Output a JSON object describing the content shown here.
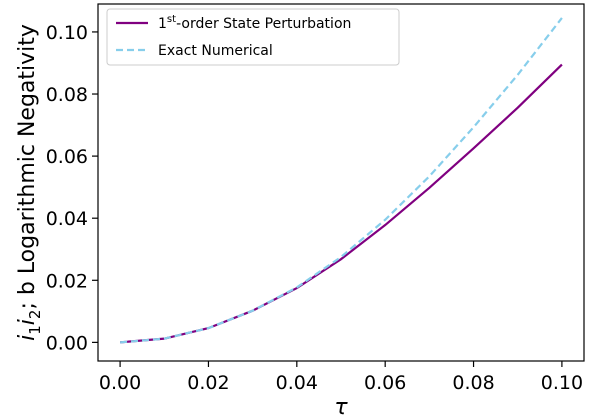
{
  "chart_data": {
    "type": "line",
    "xlabel": "τ",
    "ylabel": {
      "prefix_i1": "i",
      "sub1": "1",
      "prefix_i2": "i",
      "sub2": "2",
      "suffix": "; b Logarithmic Negativity"
    },
    "xlim": [
      -0.005,
      0.105
    ],
    "ylim": [
      -0.006,
      0.109
    ],
    "x_ticks": [
      0.0,
      0.02,
      0.04,
      0.06,
      0.08,
      0.1
    ],
    "x_tick_labels": [
      "0.00",
      "0.02",
      "0.04",
      "0.06",
      "0.08",
      "0.10"
    ],
    "y_ticks": [
      0.0,
      0.02,
      0.04,
      0.06,
      0.08,
      0.1
    ],
    "y_tick_labels": [
      "0.00",
      "0.02",
      "0.04",
      "0.06",
      "0.08",
      "0.10"
    ],
    "grid": false,
    "legend_position": "top-left",
    "x": [
      0.0,
      0.01,
      0.02,
      0.03,
      0.04,
      0.05,
      0.06,
      0.07,
      0.08,
      0.09,
      0.1
    ],
    "series": [
      {
        "name_base": "1",
        "name_sup": "st",
        "name_rest": "-order State Perturbation",
        "color": "#800080",
        "style": "solid",
        "values": [
          0.0,
          0.0012,
          0.0046,
          0.0102,
          0.0175,
          0.0268,
          0.0378,
          0.0498,
          0.0625,
          0.0756,
          0.0895
        ]
      },
      {
        "name": "Exact Numerical",
        "color": "#87ceeb",
        "style": "dashed",
        "values": [
          0.0,
          0.0012,
          0.0046,
          0.0102,
          0.0177,
          0.0275,
          0.0395,
          0.0535,
          0.0693,
          0.0862,
          0.1045
        ]
      }
    ]
  }
}
